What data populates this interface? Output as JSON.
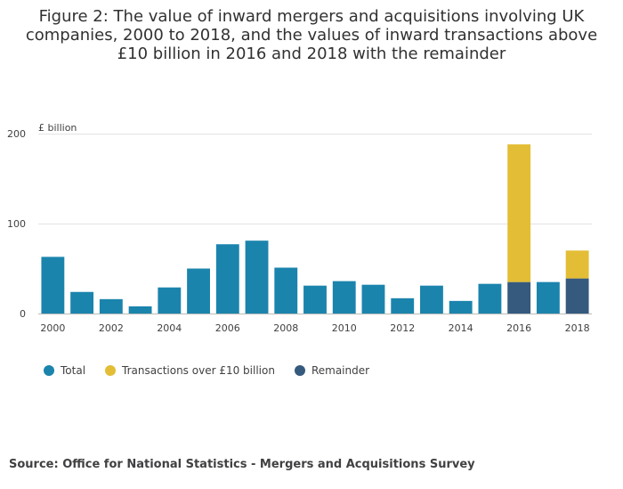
{
  "title": "Figure 2: The value of inward mergers and acquisitions involving UK companies, 2000 to 2018, and the values of inward transactions above £10 billion in 2016 and 2018 with the remainder",
  "source": "Source: Office for National Statistics - Mergers and Acquisitions Survey",
  "colors": {
    "total": "#1b84ad",
    "over10": "#e3bd35",
    "remainder": "#355a7e",
    "grid": "#e3e3e3"
  },
  "chart_data": {
    "type": "bar",
    "ylabel": "£ billion",
    "ylim": [
      0,
      200
    ],
    "yticks": [
      "0",
      "100",
      "200"
    ],
    "categories": [
      "2000",
      "2001",
      "2002",
      "2003",
      "2004",
      "2005",
      "2006",
      "2007",
      "2008",
      "2009",
      "2010",
      "2011",
      "2012",
      "2013",
      "2014",
      "2015",
      "2016",
      "2017",
      "2018"
    ],
    "xtick_labels": [
      "2000",
      "2002",
      "2004",
      "2006",
      "2008",
      "2010",
      "2012",
      "2014",
      "2016",
      "2018"
    ],
    "series": [
      {
        "name": "Total",
        "values": [
          63,
          24,
          16,
          8,
          29,
          50,
          77,
          81,
          51,
          31,
          36,
          32,
          17,
          31,
          14,
          33,
          null,
          35,
          null
        ]
      },
      {
        "name": "Transactions over £10 billion",
        "values": [
          null,
          null,
          null,
          null,
          null,
          null,
          null,
          null,
          null,
          null,
          null,
          null,
          null,
          null,
          null,
          null,
          153,
          null,
          31
        ]
      },
      {
        "name": "Remainder",
        "values": [
          null,
          null,
          null,
          null,
          null,
          null,
          null,
          null,
          null,
          null,
          null,
          null,
          null,
          null,
          null,
          null,
          35,
          null,
          39
        ]
      }
    ],
    "legend": [
      "Total",
      "Transactions over £10 billion",
      "Remainder"
    ],
    "grid": true,
    "stacked": true
  }
}
